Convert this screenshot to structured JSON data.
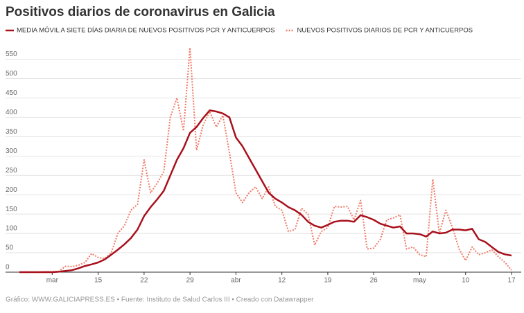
{
  "chart_data": {
    "type": "line",
    "title": "Positivos diarios de coronavirus en Galicia",
    "footer": "Gráfico: WWW.GALICIAPRESS.ES • Fuente: Instituto de Salud Carlos III • Creado con Datawrapper",
    "categories": [
      null,
      null,
      null,
      null,
      null,
      "mar",
      null,
      null,
      null,
      null,
      null,
      null,
      "15",
      null,
      null,
      null,
      null,
      null,
      null,
      "22",
      null,
      null,
      null,
      null,
      null,
      null,
      "29",
      null,
      null,
      null,
      null,
      null,
      null,
      "abr",
      null,
      null,
      null,
      null,
      null,
      null,
      "12",
      null,
      null,
      null,
      null,
      null,
      null,
      "19",
      null,
      null,
      null,
      null,
      null,
      null,
      "26",
      null,
      null,
      null,
      null,
      null,
      null,
      "may",
      null,
      null,
      null,
      null,
      null,
      null,
      "10",
      null,
      null,
      null,
      null,
      null,
      null,
      "17"
    ],
    "series": [
      {
        "name": "MEDIA MÓVIL A SIETE DÍAS DIARIA DE NUEVOS POSITIVOS PCR Y ANTICUERPOS",
        "color": "#a8101c",
        "line_style": "solid",
        "values": [
          0,
          0,
          0,
          0,
          0,
          0,
          1,
          3,
          5,
          10,
          16,
          20,
          25,
          33,
          45,
          58,
          72,
          88,
          110,
          145,
          168,
          188,
          210,
          250,
          290,
          320,
          360,
          375,
          398,
          418,
          415,
          410,
          400,
          348,
          325,
          295,
          265,
          235,
          205,
          190,
          180,
          168,
          160,
          148,
          130,
          120,
          115,
          122,
          130,
          133,
          133,
          130,
          147,
          142,
          135,
          125,
          120,
          115,
          118,
          100,
          100,
          98,
          92,
          105,
          100,
          102,
          110,
          110,
          108,
          112,
          85,
          78,
          65,
          52,
          46,
          43
        ]
      },
      {
        "name": "NUEVOS POSITIVOS DIARIOS DE PCR Y ANTICUERPOS",
        "color": "#f07a66",
        "line_style": "dotted",
        "values": [
          0,
          0,
          0,
          0,
          1,
          1,
          2,
          15,
          14,
          18,
          25,
          48,
          38,
          35,
          50,
          100,
          120,
          160,
          175,
          290,
          205,
          230,
          260,
          400,
          450,
          365,
          580,
          315,
          380,
          415,
          375,
          405,
          310,
          205,
          180,
          205,
          220,
          190,
          220,
          170,
          160,
          105,
          110,
          165,
          150,
          70,
          105,
          115,
          170,
          168,
          170,
          135,
          185,
          60,
          62,
          85,
          135,
          140,
          148,
          60,
          65,
          45,
          40,
          240,
          100,
          160,
          115,
          60,
          30,
          65,
          45,
          50,
          58,
          40,
          25,
          5
        ]
      }
    ],
    "ylim": [
      0,
      560
    ],
    "yticks": [
      0,
      50,
      100,
      150,
      200,
      250,
      300,
      350,
      400,
      450,
      500,
      550
    ],
    "grid": true
  }
}
